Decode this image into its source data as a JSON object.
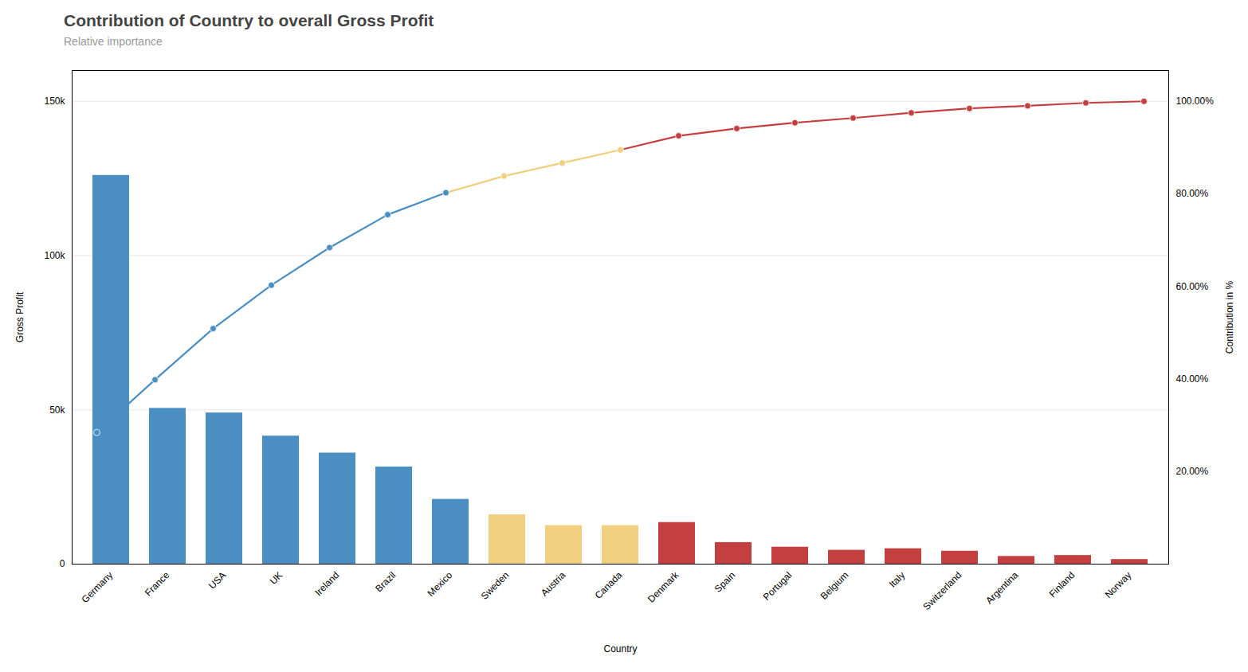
{
  "chart_data": {
    "type": "bar",
    "title": "Contribution of Country to overall Gross Profit",
    "subtitle": "Relative importance",
    "xlabel": "Country",
    "ylabel": "Gross Profit",
    "y2label": "Contribution in %",
    "categories": [
      "Germany",
      "France",
      "USA",
      "UK",
      "Ireland",
      "Brazil",
      "Mexico",
      "Sweden",
      "Austria",
      "Canada",
      "Denmark",
      "Spain",
      "Portugal",
      "Belgium",
      "Italy",
      "Switzerland",
      "Argentina",
      "Finland",
      "Norway"
    ],
    "series": [
      {
        "type": "bar",
        "values": [
          126000,
          50500,
          49000,
          41500,
          36000,
          31500,
          21000,
          16000,
          12500,
          12500,
          13500,
          7000,
          5500,
          4500,
          5000,
          4200,
          2500,
          2800,
          1500
        ],
        "colors": [
          "#4a8ec2",
          "#4a8ec2",
          "#4a8ec2",
          "#4a8ec2",
          "#4a8ec2",
          "#4a8ec2",
          "#4a8ec2",
          "#f0d080",
          "#f0d080",
          "#f0d080",
          "#c44040",
          "#c44040",
          "#c44040",
          "#c44040",
          "#c44040",
          "#c44040",
          "#c44040",
          "#c44040",
          "#c44040"
        ]
      },
      {
        "type": "line",
        "axis": "y2",
        "marker": "circle",
        "values": [
          0.284424,
          0.39842,
          0.509029,
          0.602709,
          0.683973,
          0.755079,
          0.802483,
          0.8386,
          0.866817,
          0.895034,
          0.925508,
          0.941309,
          0.953725,
          0.963883,
          0.975169,
          0.98465,
          0.990293,
          0.996614,
          1.0
        ],
        "colors": [
          "#4a8ec2",
          "#4a8ec2",
          "#4a8ec2",
          "#4a8ec2",
          "#4a8ec2",
          "#4a8ec2",
          "#4a8ec2",
          "#f0d080",
          "#f0d080",
          "#f0d080",
          "#c44040",
          "#c44040",
          "#c44040",
          "#c44040",
          "#c44040",
          "#c44040",
          "#c44040",
          "#c44040",
          "#c44040"
        ]
      }
    ],
    "ylim": [
      0,
      160000
    ],
    "yticks": [
      0,
      {
        "value": 50000,
        "label": "50k"
      },
      {
        "value": 100000,
        "label": "100k"
      },
      {
        "value": 150000,
        "label": "150k"
      }
    ],
    "y2lim": [
      0.0,
      1.0667
    ],
    "y2ticks": [
      {
        "value": 0.2,
        "label": "20.00%"
      },
      {
        "value": 0.4,
        "label": "40.00%"
      },
      {
        "value": 0.6,
        "label": "60.00%"
      },
      {
        "value": 0.8,
        "label": "80.00%"
      },
      {
        "value": 1.0,
        "label": "100.00%"
      }
    ],
    "grid": true
  }
}
